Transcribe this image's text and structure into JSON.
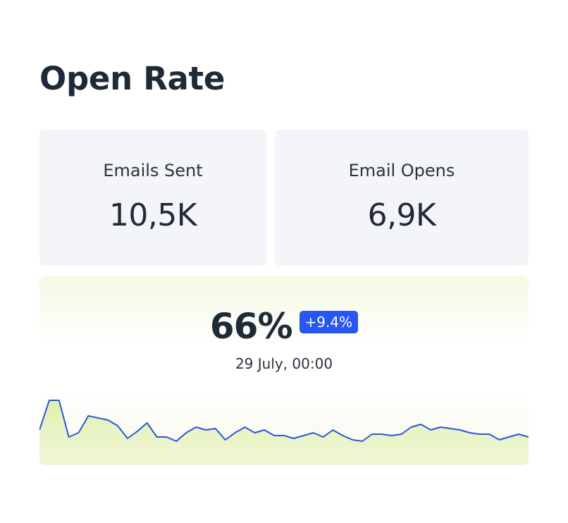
{
  "title": "Open Rate",
  "stats": [
    {
      "label": "Emails Sent",
      "value": "10,5K"
    },
    {
      "label": "Email Opens",
      "value": "6,9K"
    }
  ],
  "open_rate": {
    "value": "66%",
    "change": "+9.4%",
    "date": "29 July, 00:00"
  },
  "colors": {
    "line": "#2b55e6",
    "area": "#dceea0",
    "badge": "#2756f2",
    "card_bg": "#f4f5f9"
  },
  "chart_data": {
    "type": "area",
    "values": [
      40,
      82,
      82,
      30,
      36,
      60,
      57,
      54,
      46,
      28,
      38,
      50,
      30,
      30,
      24,
      36,
      44,
      40,
      42,
      26,
      36,
      44,
      36,
      40,
      32,
      32,
      28,
      32,
      36,
      30,
      40,
      32,
      26,
      24,
      34,
      34,
      32,
      34,
      44,
      48,
      40,
      44,
      42,
      40,
      36,
      34,
      34,
      26,
      30,
      34,
      30
    ]
  }
}
